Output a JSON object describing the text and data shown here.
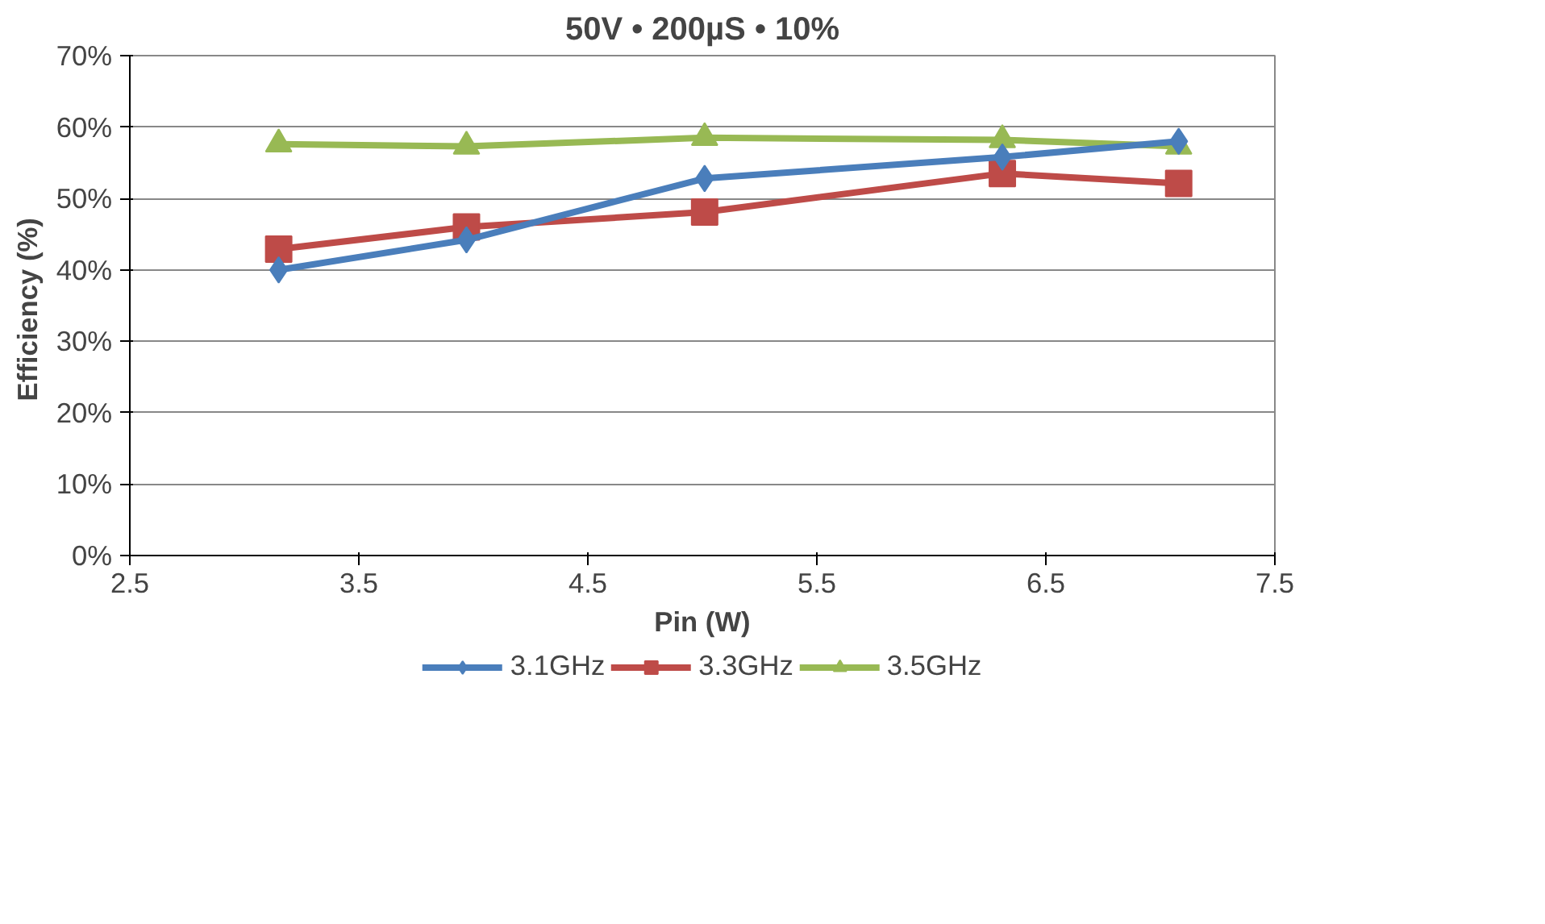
{
  "chart_data": {
    "type": "line",
    "subtitle": "50V • 200µS • 10%",
    "xlabel": "Pin (W)",
    "ylabel": "Efficiency  (%)",
    "x": [
      3.15,
      3.97,
      5.01,
      6.31,
      7.08
    ],
    "series": [
      {
        "name": "3.1GHz",
        "color": "#4a7ebb",
        "marker": "diamond",
        "values": [
          40.0,
          44.2,
          52.8,
          55.8,
          58.0
        ]
      },
      {
        "name": "3.3GHz",
        "color": "#be4b48",
        "marker": "square",
        "values": [
          42.9,
          46.0,
          48.1,
          53.5,
          52.1
        ]
      },
      {
        "name": "3.5GHz",
        "color": "#98b954",
        "marker": "triangle",
        "values": [
          57.6,
          57.3,
          58.5,
          58.2,
          57.3
        ]
      }
    ],
    "xlim": [
      2.5,
      7.5
    ],
    "xticks": [
      2.5,
      3.5,
      4.5,
      5.5,
      6.5,
      7.5
    ],
    "ylim": [
      0,
      70
    ],
    "yticks": [
      {
        "value": 0,
        "label": "0%"
      },
      {
        "value": 10,
        "label": "10%"
      },
      {
        "value": 20,
        "label": "20%"
      },
      {
        "value": 30,
        "label": "30%"
      },
      {
        "value": 40,
        "label": "40%"
      },
      {
        "value": 50,
        "label": "50%"
      },
      {
        "value": 60,
        "label": "60%"
      },
      {
        "value": 70,
        "label": "70%"
      }
    ],
    "grid": "y",
    "legend": "bottom",
    "line_style": "solid"
  }
}
